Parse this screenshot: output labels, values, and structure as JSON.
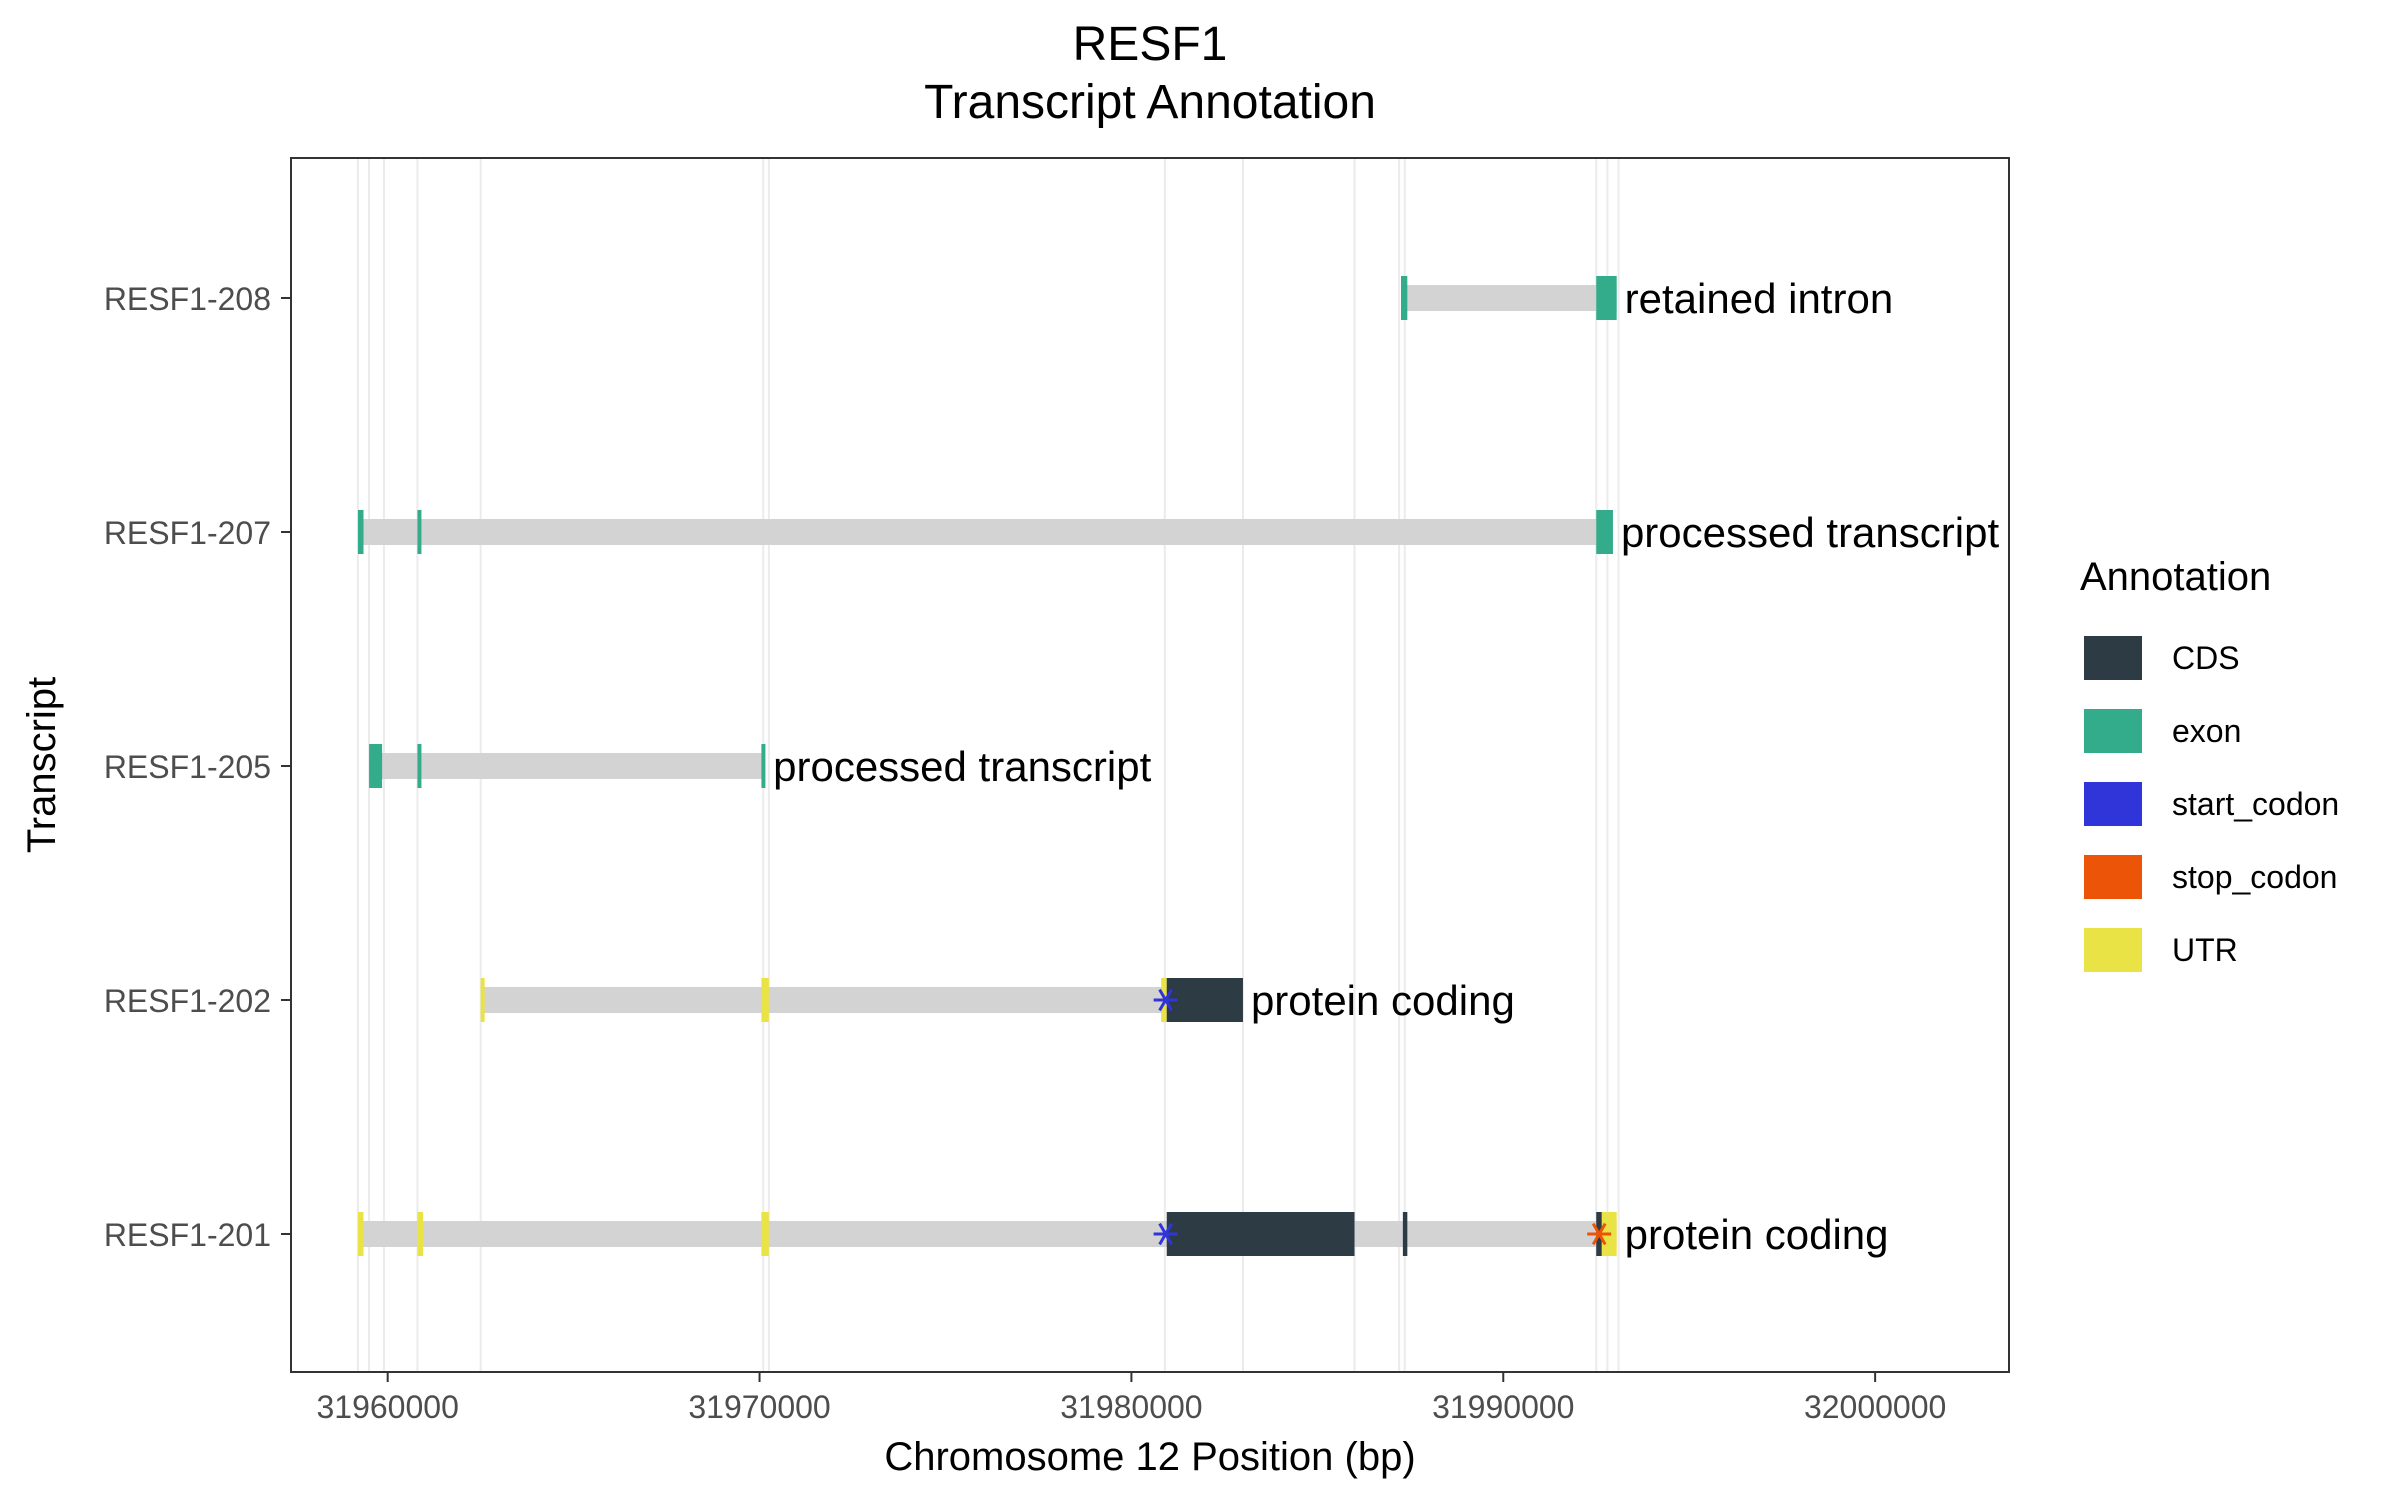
{
  "chart_data": {
    "type": "gene-track",
    "title": "RESF1",
    "subtitle": "Transcript Annotation",
    "xlabel": "Chromosome 12 Position (bp)",
    "ylabel": "Transcript",
    "xlim": [
      31957400,
      32003600
    ],
    "x_ticks": [
      31960000,
      31970000,
      31980000,
      31990000,
      32000000
    ],
    "x_tick_labels": [
      "31960000",
      "31970000",
      "31980000",
      "31990000",
      "32000000"
    ],
    "grid": true,
    "legend": {
      "title": "Annotation",
      "position": "right",
      "entries": [
        {
          "label": "CDS",
          "key": "CDS"
        },
        {
          "label": "exon",
          "key": "exon"
        },
        {
          "label": "start_codon",
          "key": "start_codon"
        },
        {
          "label": "stop_codon",
          "key": "stop_codon"
        },
        {
          "label": "UTR",
          "key": "UTR"
        }
      ]
    },
    "colors": {
      "CDS": "#2d3b45",
      "exon": "#33ac8c",
      "start_codon": "#2f35d9",
      "stop_codon": "#ec5407",
      "UTR": "#eae346",
      "intron": "#d3d3d3"
    },
    "vertical_gridlines": [
      31959200,
      31959500,
      31959900,
      31960800,
      31962500,
      31970100,
      31970250,
      31980900,
      31983000,
      31986000,
      31987200,
      31987350,
      31992500,
      31992800,
      31993100
    ],
    "transcripts": [
      {
        "name": "RESF1-208",
        "biotype": "retained intron",
        "start": 31987250,
        "end": 31993050,
        "features": [
          {
            "type": "exon",
            "start": 31987250,
            "end": 31987420
          },
          {
            "type": "exon",
            "start": 31992500,
            "end": 31993050
          }
        ]
      },
      {
        "name": "RESF1-207",
        "biotype": "processed transcript",
        "start": 31959200,
        "end": 31992950,
        "features": [
          {
            "type": "exon",
            "start": 31959200,
            "end": 31959350
          },
          {
            "type": "exon",
            "start": 31960800,
            "end": 31960900
          },
          {
            "type": "exon",
            "start": 31992500,
            "end": 31992950
          }
        ]
      },
      {
        "name": "RESF1-205",
        "biotype": "processed transcript",
        "start": 31959500,
        "end": 31970150,
        "features": [
          {
            "type": "exon",
            "start": 31959500,
            "end": 31959850
          },
          {
            "type": "exon",
            "start": 31960800,
            "end": 31960900
          },
          {
            "type": "exon",
            "start": 31970050,
            "end": 31970150
          }
        ]
      },
      {
        "name": "RESF1-202",
        "biotype": "protein coding",
        "start": 31962500,
        "end": 31983000,
        "features": [
          {
            "type": "UTR",
            "start": 31962500,
            "end": 31962600
          },
          {
            "type": "UTR",
            "start": 31970050,
            "end": 31970250
          },
          {
            "type": "UTR",
            "start": 31980800,
            "end": 31980950
          },
          {
            "type": "CDS",
            "start": 31980950,
            "end": 31983000
          }
        ],
        "codons": [
          {
            "type": "start_codon",
            "pos": 31980920
          }
        ]
      },
      {
        "name": "RESF1-201",
        "biotype": "protein coding",
        "start": 31959200,
        "end": 31993050,
        "features": [
          {
            "type": "UTR",
            "start": 31959200,
            "end": 31959350
          },
          {
            "type": "UTR",
            "start": 31960800,
            "end": 31960950
          },
          {
            "type": "UTR",
            "start": 31970050,
            "end": 31970250
          },
          {
            "type": "CDS",
            "start": 31980950,
            "end": 31986000
          },
          {
            "type": "CDS",
            "start": 31987300,
            "end": 31987420
          },
          {
            "type": "CDS",
            "start": 31992500,
            "end": 31992650
          },
          {
            "type": "UTR",
            "start": 31992650,
            "end": 31993050
          }
        ],
        "codons": [
          {
            "type": "start_codon",
            "pos": 31980920
          },
          {
            "type": "stop_codon",
            "pos": 31992580
          }
        ]
      }
    ]
  }
}
